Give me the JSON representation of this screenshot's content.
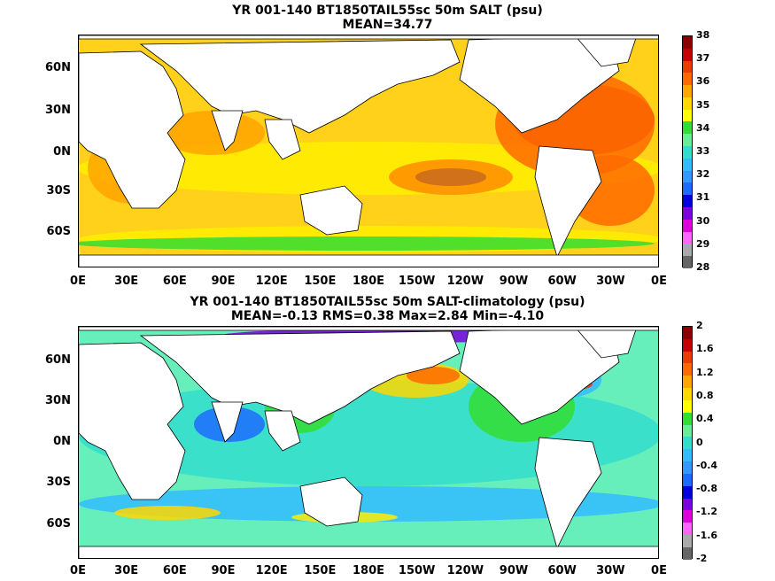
{
  "top": {
    "title_line1": "YR 001-140 BT1850TAIL55sc 50m SALT (psu)",
    "title_line2": "MEAN=34.77",
    "colorbar_labels": [
      "38",
      "37",
      "36",
      "35",
      "34",
      "33",
      "32",
      "31",
      "30",
      "29",
      "28"
    ],
    "colorbar_colors": [
      "#8b0000",
      "#c40000",
      "#e83c00",
      "#ff6a00",
      "#ffa500",
      "#ffd700",
      "#ffff00",
      "#33dd33",
      "#66ee99",
      "#33ddcc",
      "#33bbff",
      "#3399ff",
      "#1e6cff",
      "#0000dd",
      "#7a00dd",
      "#dd00dd",
      "#ff66ff",
      "#aaaaaa",
      "#666666"
    ],
    "ocean_color": "#ffd11a"
  },
  "bottom": {
    "title_line1": "YR 001-140 BT1850TAIL55sc 50m SALT-climatology (psu)",
    "title_line2": "MEAN=-0.13   RMS=0.38   Max=2.84   Min=-4.10",
    "colorbar_labels": [
      "2",
      "1.6",
      "1.2",
      "0.8",
      "0.4",
      "0",
      "-0.4",
      "-0.8",
      "-1.2",
      "-1.6",
      "-2"
    ],
    "colorbar_colors": [
      "#8b0000",
      "#c40000",
      "#e83c00",
      "#ff6a00",
      "#ffa500",
      "#ffd700",
      "#ffff00",
      "#33dd33",
      "#66ee99",
      "#33ddcc",
      "#33bbff",
      "#3399ff",
      "#1e6cff",
      "#0000dd",
      "#7a00dd",
      "#dd00dd",
      "#ff66ff",
      "#aaaaaa",
      "#666666"
    ],
    "ocean_color": "#66eebb"
  },
  "axes": {
    "x_ticks": [
      "0E",
      "30E",
      "60E",
      "90E",
      "120E",
      "150E",
      "180E",
      "150W",
      "120W",
      "90W",
      "60W",
      "30W",
      "0E"
    ],
    "y_ticks": [
      "60N",
      "30N",
      "0N",
      "30S",
      "60S"
    ]
  }
}
